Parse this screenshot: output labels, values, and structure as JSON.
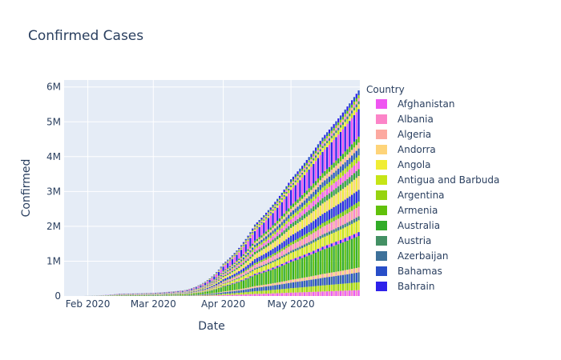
{
  "chart_data": {
    "type": "bar",
    "stacked": true,
    "title": "Confirmed Cases",
    "xlabel": "Date",
    "ylabel": "Confirmed",
    "x_range": [
      "2020-01-22",
      "2020-05-31"
    ],
    "x_ticks": [
      {
        "date": "2020-02-01",
        "label": "Feb 2020"
      },
      {
        "date": "2020-03-01",
        "label": "Mar 2020"
      },
      {
        "date": "2020-04-01",
        "label": "Apr 2020"
      },
      {
        "date": "2020-05-01",
        "label": "May 2020"
      }
    ],
    "ylim": [
      0,
      6200000
    ],
    "y_ticks": [
      {
        "value": 0,
        "label": "0"
      },
      {
        "value": 1000000,
        "label": "1M"
      },
      {
        "value": 2000000,
        "label": "2M"
      },
      {
        "value": 3000000,
        "label": "3M"
      },
      {
        "value": 4000000,
        "label": "4M"
      },
      {
        "value": 5000000,
        "label": "5M"
      },
      {
        "value": 6000000,
        "label": "6M"
      }
    ],
    "total_confirmed_by_date": [
      {
        "date": "2020-01-22",
        "value": 550
      },
      {
        "date": "2020-02-01",
        "value": 12000
      },
      {
        "date": "2020-02-15",
        "value": 69000
      },
      {
        "date": "2020-03-01",
        "value": 88000
      },
      {
        "date": "2020-03-15",
        "value": 167000
      },
      {
        "date": "2020-03-22",
        "value": 336000
      },
      {
        "date": "2020-04-01",
        "value": 930000
      },
      {
        "date": "2020-04-15",
        "value": 2050000
      },
      {
        "date": "2020-05-01",
        "value": 3350000
      },
      {
        "date": "2020-05-15",
        "value": 4550000
      },
      {
        "date": "2020-05-31",
        "value": 5900000
      }
    ],
    "legend": {
      "title": "Country",
      "placement": "right",
      "entries": [
        {
          "name": "Afghanistan",
          "color": "#ef55f1"
        },
        {
          "name": "Albania",
          "color": "#fc84c8"
        },
        {
          "name": "Algeria",
          "color": "#fca9a0"
        },
        {
          "name": "Andorra",
          "color": "#fed479"
        },
        {
          "name": "Angola",
          "color": "#f0ed35"
        },
        {
          "name": "Antigua and Barbuda",
          "color": "#c6e516"
        },
        {
          "name": "Argentina",
          "color": "#96d310"
        },
        {
          "name": "Armenia",
          "color": "#61c10b"
        },
        {
          "name": "Australia",
          "color": "#31ac28"
        },
        {
          "name": "Austria",
          "color": "#439064"
        },
        {
          "name": "Azerbaijan",
          "color": "#3d719a"
        },
        {
          "name": "Bahamas",
          "color": "#284ec8"
        },
        {
          "name": "Bahrain",
          "color": "#2e21ea"
        }
      ]
    },
    "grid": true,
    "plot_background": "#e5ecf6",
    "text_color": "#2a3f5f"
  }
}
